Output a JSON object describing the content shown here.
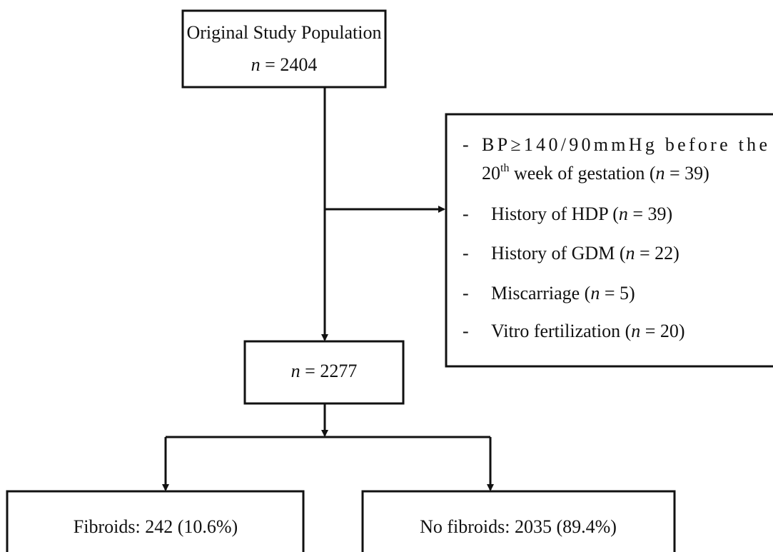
{
  "nodes": [
    {
      "lines": [
        [
          {
            "text": "Original Study Population"
          }
        ],
        [
          {
            "text": "n",
            "italic": true
          },
          {
            "text": " = 2404"
          }
        ]
      ]
    },
    {
      "lines": [
        [
          {
            "text": "n",
            "italic": true
          },
          {
            "text": " = 2277"
          }
        ]
      ]
    },
    {
      "lines": [
        [
          {
            "text": "Fibroids: 242 (10.6%)"
          }
        ]
      ]
    },
    {
      "lines": [
        [
          {
            "text": "No fibroids: 2035 (89.4%)"
          }
        ]
      ]
    }
  ],
  "exclusions": {
    "marker": "-",
    "items": [
      {
        "lines": [
          [
            {
              "text": "BP≥140/90mmHg before the"
            }
          ],
          [
            {
              "text": "20"
            },
            {
              "text": "th",
              "sup": true
            },
            {
              "text": " week of gestation ("
            },
            {
              "text": "n",
              "italic": true
            },
            {
              "text": " = 39)"
            }
          ]
        ]
      },
      {
        "lines": [
          [
            {
              "text": "History of HDP ("
            },
            {
              "text": "n",
              "italic": true
            },
            {
              "text": " = 39)"
            }
          ]
        ]
      },
      {
        "lines": [
          [
            {
              "text": "History of GDM ("
            },
            {
              "text": "n",
              "italic": true
            },
            {
              "text": " = 22)"
            }
          ]
        ]
      },
      {
        "lines": [
          [
            {
              "text": "Miscarriage ("
            },
            {
              "text": "n",
              "italic": true
            },
            {
              "text": " = 5)"
            }
          ]
        ]
      },
      {
        "lines": [
          [
            {
              "text": "Vitro fertilization ("
            },
            {
              "text": "n",
              "italic": true
            },
            {
              "text": " = 20)"
            }
          ]
        ]
      }
    ]
  }
}
